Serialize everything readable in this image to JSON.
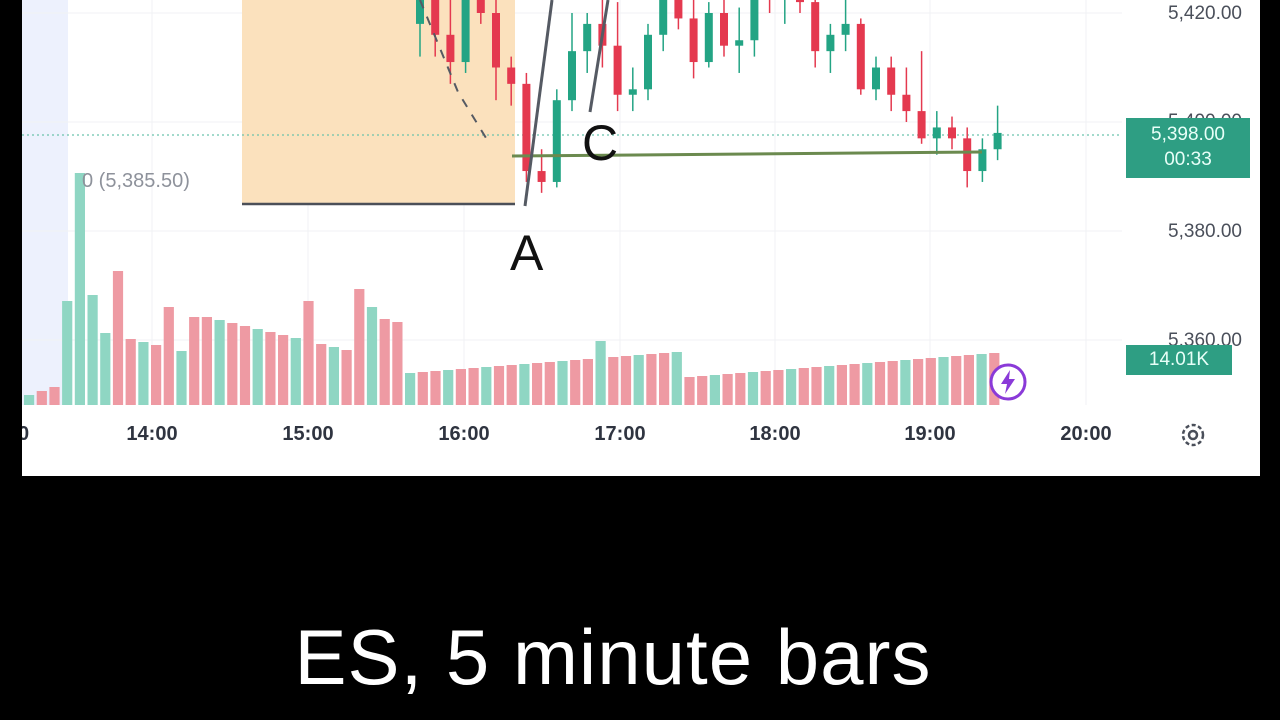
{
  "caption": "ES, 5 minute bars",
  "chart_data": {
    "type": "candlestick",
    "symbol": "ES",
    "interval": "5 minute",
    "y_ticks": [
      "5,420.00",
      "5,400.00",
      "5,380.00",
      "5,360.00"
    ],
    "x_ticks": [
      "14:00",
      "15:00",
      "16:00",
      "17:00",
      "18:00",
      "19:00",
      "20:00"
    ],
    "left_edge_tick": "0",
    "last_price": "5,398.00",
    "countdown": "00:33",
    "last_volume": "14.01K",
    "level_annotation": "0 (5,385.50)",
    "wave_labels": [
      "A",
      "C"
    ],
    "candles": [
      [
        5418,
        5432,
        5412,
        5426
      ],
      [
        5426,
        5430,
        5412,
        5416
      ],
      [
        5416,
        5427,
        5407,
        5411
      ],
      [
        5411,
        5428,
        5409,
        5424
      ],
      [
        5424,
        5432,
        5418,
        5420
      ],
      [
        5420,
        5424,
        5404,
        5410
      ],
      [
        5410,
        5412,
        5403,
        5407
      ],
      [
        5407,
        5409,
        5389,
        5391
      ],
      [
        5391,
        5395,
        5387,
        5389
      ],
      [
        5389,
        5406,
        5388,
        5404
      ],
      [
        5404,
        5420,
        5402,
        5413
      ],
      [
        5413,
        5420,
        5409,
        5418
      ],
      [
        5418,
        5426,
        5410,
        5414
      ],
      [
        5414,
        5422,
        5402,
        5405
      ],
      [
        5405,
        5410,
        5402,
        5406
      ],
      [
        5406,
        5418,
        5404,
        5416
      ],
      [
        5416,
        5430,
        5413,
        5428
      ],
      [
        5428,
        5434,
        5417,
        5419
      ],
      [
        5419,
        5424,
        5408,
        5411
      ],
      [
        5411,
        5422,
        5410,
        5420
      ],
      [
        5420,
        5430,
        5412,
        5414
      ],
      [
        5414,
        5421,
        5409,
        5415
      ],
      [
        5415,
        5428,
        5412,
        5426
      ],
      [
        5426,
        5432,
        5420,
        5424
      ],
      [
        5424,
        5428,
        5418,
        5427
      ],
      [
        5427,
        5432,
        5420,
        5422
      ],
      [
        5422,
        5426,
        5410,
        5413
      ],
      [
        5413,
        5418,
        5409,
        5416
      ],
      [
        5416,
        5424,
        5413,
        5418
      ],
      [
        5418,
        5419,
        5405,
        5406
      ],
      [
        5406,
        5412,
        5404,
        5410
      ],
      [
        5410,
        5412,
        5402,
        5405
      ],
      [
        5405,
        5410,
        5400,
        5402
      ],
      [
        5402,
        5413,
        5396,
        5397
      ],
      [
        5397,
        5402,
        5394,
        5399
      ],
      [
        5399,
        5401,
        5395,
        5397
      ],
      [
        5397,
        5399,
        5388,
        5391
      ],
      [
        5391,
        5397,
        5389,
        5395
      ],
      [
        5395,
        5403,
        5393,
        5398
      ]
    ]
  }
}
